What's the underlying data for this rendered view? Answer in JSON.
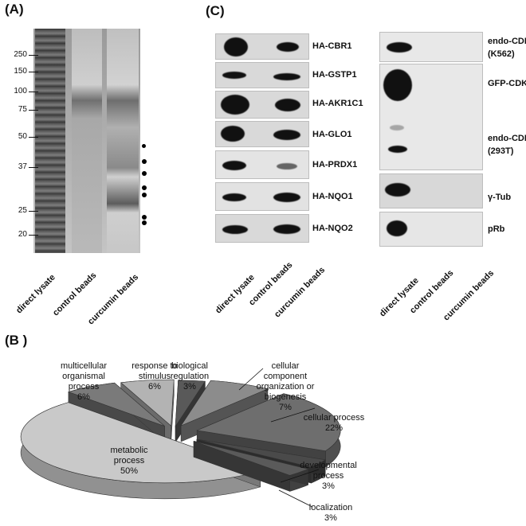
{
  "panelA": {
    "label": "(A)",
    "mw_markers": [
      "250",
      "150",
      "100",
      "75",
      "50",
      "37",
      "25",
      "20"
    ],
    "lanes": [
      "direct lysate",
      "control beads",
      "curcumin beads"
    ]
  },
  "panelC": {
    "label": "(C)",
    "left_blots": [
      "HA-CBR1",
      "HA-GSTP1",
      "HA-AKR1C1",
      "HA-GLO1",
      "HA-PRDX1",
      "HA-NQO1",
      "HA-NQO2"
    ],
    "right_blots": {
      "k562_line1": "endo-CDK2",
      "k562_line2": "(K562)",
      "gfp": "GFP-CDK2",
      "t293_line1": "endo-CDK2",
      "t293_line2": "(293T)",
      "tub": "γ-Tub",
      "prb": "pRb"
    },
    "lanes": [
      "direct lysate",
      "control beads",
      "curcumin beads"
    ]
  },
  "panelB": {
    "label": "(B )",
    "chart_data": {
      "type": "pie",
      "title": "",
      "slices": [
        {
          "name": "biological regulation",
          "value": 3
        },
        {
          "name": "cellular component organization or biogenesis",
          "value": 7
        },
        {
          "name": "cellular process",
          "value": 22
        },
        {
          "name": "developmental process",
          "value": 3
        },
        {
          "name": "localization",
          "value": 3
        },
        {
          "name": "metabolic process",
          "value": 50
        },
        {
          "name": "multicellular organismal process",
          "value": 6
        },
        {
          "name": "response to stimulus",
          "value": 6
        }
      ]
    },
    "labels": {
      "bio_reg_1": "biological",
      "bio_reg_2": "regulation",
      "bio_reg_pct": "3%",
      "ccob_1": "cellular",
      "ccob_2": "component",
      "ccob_3": "organization or",
      "ccob_4": "biogenesis",
      "ccob_pct": "7%",
      "cell_proc_1": "cellular process",
      "cell_proc_pct": "22%",
      "dev_1": "developmental",
      "dev_2": "process",
      "dev_pct": "3%",
      "loc_1": "localization",
      "loc_pct": "3%",
      "met_1": "metabolic",
      "met_2": "process",
      "met_pct": "50%",
      "multi_1": "multicellular",
      "multi_2": "organismal",
      "multi_3": "process",
      "multi_pct": "6%",
      "resp_1": "response to",
      "resp_2": "stimulus",
      "resp_pct": "6%"
    }
  }
}
